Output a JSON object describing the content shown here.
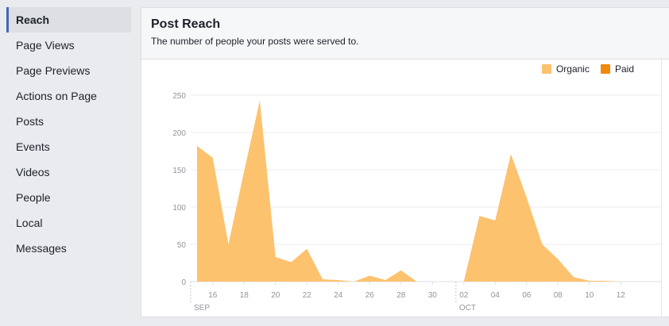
{
  "sidebar": {
    "items": [
      {
        "label": "Reach",
        "active": true
      },
      {
        "label": "Page Views"
      },
      {
        "label": "Page Previews"
      },
      {
        "label": "Actions on Page"
      },
      {
        "label": "Posts"
      },
      {
        "label": "Events"
      },
      {
        "label": "Videos"
      },
      {
        "label": "People"
      },
      {
        "label": "Local"
      },
      {
        "label": "Messages"
      }
    ]
  },
  "panel": {
    "title": "Post Reach",
    "subtitle": "The number of people your posts were served to."
  },
  "legend": [
    {
      "label": "Organic",
      "color": "#fcc26e"
    },
    {
      "label": "Paid",
      "color": "#f0890d"
    }
  ],
  "chart_data": {
    "type": "area",
    "y_ticks": [
      "250",
      "200",
      "150",
      "100",
      "50",
      "0"
    ],
    "ylim": [
      0,
      250
    ],
    "x_tick_labels": [
      "16",
      "18",
      "20",
      "22",
      "24",
      "26",
      "28",
      "30",
      "02",
      "04",
      "06",
      "08",
      "10",
      "12"
    ],
    "month_labels": [
      "SEP",
      "OCT"
    ],
    "x": [
      "Sep 15",
      "Sep 16",
      "Sep 17",
      "Sep 18",
      "Sep 19",
      "Sep 20",
      "Sep 21",
      "Sep 22",
      "Sep 23",
      "Sep 24",
      "Sep 25",
      "Sep 26",
      "Sep 27",
      "Sep 28",
      "Sep 29",
      "Sep 30",
      "Oct 01",
      "Oct 02",
      "Oct 03",
      "Oct 04",
      "Oct 05",
      "Oct 06",
      "Oct 07",
      "Oct 08",
      "Oct 09",
      "Oct 10",
      "Oct 11",
      "Oct 12"
    ],
    "series": [
      {
        "name": "Organic",
        "color": "#fcc26e",
        "values": [
          182,
          166,
          50,
          148,
          243,
          33,
          26,
          44,
          3,
          2,
          0,
          8,
          2,
          15,
          0,
          0,
          0,
          0,
          88,
          82,
          171,
          113,
          50,
          30,
          6,
          1,
          1,
          0
        ]
      },
      {
        "name": "Paid",
        "color": "#f0890d",
        "values": [
          0,
          0,
          0,
          0,
          0,
          0,
          0,
          0,
          0,
          0,
          0,
          0,
          0,
          0,
          0,
          0,
          0,
          0,
          0,
          0,
          0,
          0,
          0,
          0,
          0,
          0,
          0,
          0
        ]
      }
    ],
    "grid": true,
    "legend_position": "top-right"
  }
}
